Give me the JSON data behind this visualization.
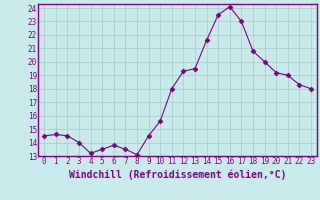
{
  "x": [
    0,
    1,
    2,
    3,
    4,
    5,
    6,
    7,
    8,
    9,
    10,
    11,
    12,
    13,
    14,
    15,
    16,
    17,
    18,
    19,
    20,
    21,
    22,
    23
  ],
  "y": [
    14.5,
    14.6,
    14.5,
    14.0,
    13.2,
    13.5,
    13.8,
    13.5,
    13.1,
    14.5,
    15.6,
    18.0,
    19.3,
    19.5,
    21.6,
    23.5,
    24.1,
    23.0,
    20.8,
    20.0,
    19.2,
    19.0,
    18.3,
    18.0
  ],
  "line_color": "#800080",
  "marker": "D",
  "marker_size": 2.5,
  "bg_color": "#c8eaea",
  "grid_color": "#a8d0d0",
  "xlabel": "Windchill (Refroidissement éolien,°C)",
  "xlabel_color": "#800080",
  "ylim": [
    13,
    24
  ],
  "xlim_min": -0.5,
  "xlim_max": 23.5,
  "yticks": [
    13,
    14,
    15,
    16,
    17,
    18,
    19,
    20,
    21,
    22,
    23,
    24
  ],
  "xticks": [
    0,
    1,
    2,
    3,
    4,
    5,
    6,
    7,
    8,
    9,
    10,
    11,
    12,
    13,
    14,
    15,
    16,
    17,
    18,
    19,
    20,
    21,
    22,
    23
  ],
  "tick_color": "#800080",
  "tick_fontsize": 5.5,
  "xlabel_fontsize": 7.0,
  "spine_color": "#800080",
  "border_color": "#800080"
}
